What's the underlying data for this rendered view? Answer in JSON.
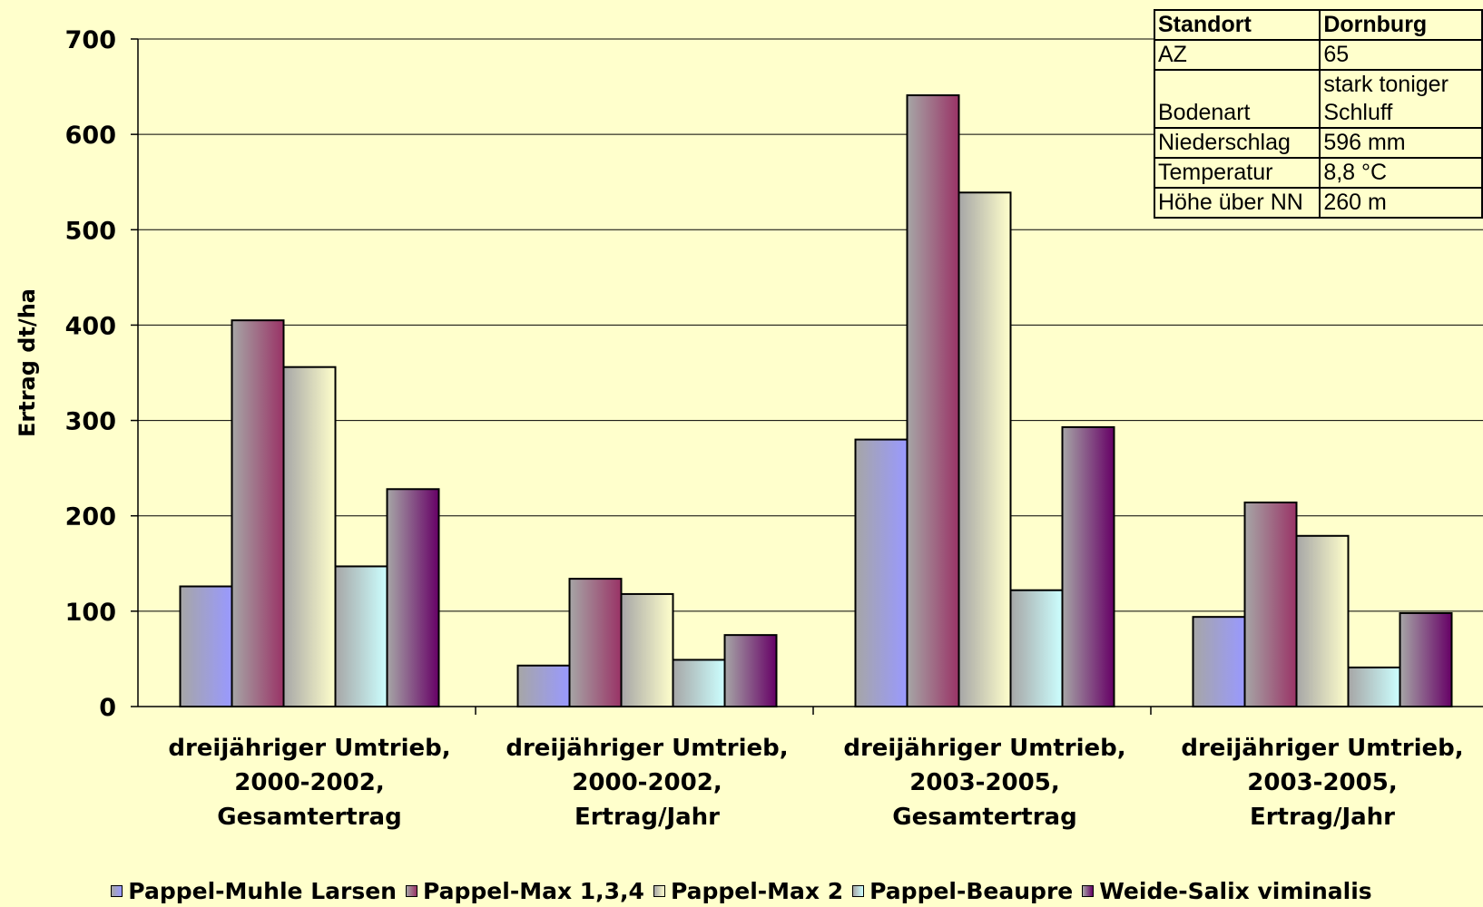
{
  "chart_data": {
    "type": "bar",
    "ylabel": "Ertrag dt/ha",
    "ylim": [
      0,
      700
    ],
    "yticks": [
      "0",
      "100",
      "200",
      "300",
      "400",
      "500",
      "600",
      "700"
    ],
    "grid": true,
    "legend_position": "bottom",
    "categories": [
      [
        "dreijähriger Umtrieb,",
        "2000-2002,",
        "Gesamtertrag"
      ],
      [
        "dreijähriger Umtrieb,",
        "2000-2002,",
        "Ertrag/Jahr"
      ],
      [
        "dreijähriger Umtrieb,",
        "2003-2005,",
        "Gesamtertrag"
      ],
      [
        "dreijähriger Umtrieb,",
        "2003-2005,",
        "Ertrag/Jahr"
      ]
    ],
    "series": [
      {
        "name": "Pappel-Muhle Larsen",
        "color": "#9999FF",
        "values": [
          126,
          43,
          280,
          94
        ]
      },
      {
        "name": "Pappel-Max 1,3,4",
        "color": "#993366",
        "values": [
          405,
          134,
          641,
          214
        ]
      },
      {
        "name": "Pappel-Max 2",
        "color": "#FFFFCC",
        "values": [
          356,
          118,
          539,
          179
        ]
      },
      {
        "name": "Pappel-Beaupre",
        "color": "#CCFFFF",
        "values": [
          147,
          49,
          122,
          41
        ]
      },
      {
        "name": "Weide-Salix viminalis",
        "color": "#660066",
        "values": [
          228,
          75,
          293,
          98
        ]
      }
    ]
  },
  "info_table": {
    "header": [
      "Standort",
      "Dornburg"
    ],
    "rows": [
      [
        "AZ",
        "65"
      ],
      [
        "Bodenart",
        "stark toniger Schluff"
      ],
      [
        "Niederschlag",
        "596 mm"
      ],
      [
        "Temperatur",
        "8,8 °C"
      ],
      [
        "Höhe über NN",
        "260 m"
      ]
    ]
  }
}
